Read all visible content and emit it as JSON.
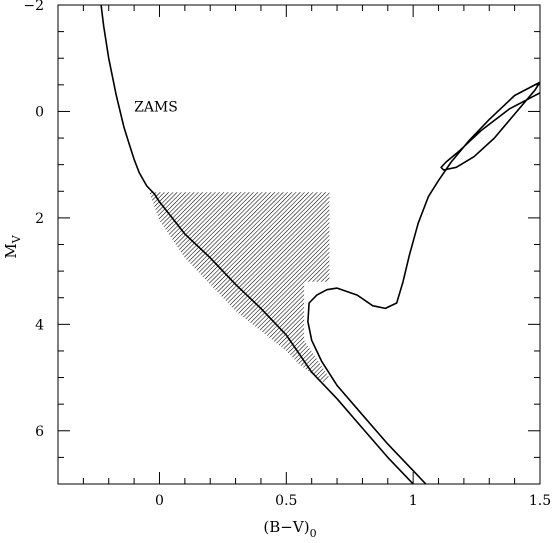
{
  "chart_data": {
    "type": "line",
    "xlabel": "(B−V)",
    "xlabel_sub": "0",
    "ylabel": "M",
    "ylabel_sub": "V",
    "xlim": [
      -0.4,
      1.5
    ],
    "ylim": [
      -2,
      7
    ],
    "y_inverted": true,
    "grid": false,
    "x_ticks": [
      {
        "value": 0,
        "label": "0"
      },
      {
        "value": 0.5,
        "label": "0.5"
      },
      {
        "value": 1,
        "label": "1"
      },
      {
        "value": 1.5,
        "label": "1.5"
      }
    ],
    "y_ticks": [
      {
        "value": -2,
        "label": "−2"
      },
      {
        "value": 0,
        "label": "0"
      },
      {
        "value": 2,
        "label": "2"
      },
      {
        "value": 4,
        "label": "4"
      },
      {
        "value": 6,
        "label": "6"
      }
    ],
    "x_minor_step": 0.1,
    "y_minor_step": 0.5,
    "annotations": [
      {
        "text": "ZAMS",
        "x": -0.1,
        "y": 0.0
      }
    ],
    "series": [
      {
        "id": "zams",
        "x": [
          -0.23,
          -0.22,
          -0.2,
          -0.17,
          -0.14,
          -0.12,
          -0.1,
          -0.08,
          -0.05,
          -0.02,
          0.0,
          0.05,
          0.1,
          0.2,
          0.3,
          0.4,
          0.5,
          0.55,
          0.6,
          0.7,
          0.8,
          0.9,
          1.0,
          1.05
        ],
        "y": [
          -2.0,
          -1.6,
          -1.0,
          -0.3,
          0.3,
          0.6,
          0.9,
          1.15,
          1.4,
          1.55,
          1.7,
          2.0,
          2.3,
          2.75,
          3.25,
          3.7,
          4.2,
          4.55,
          4.9,
          5.4,
          5.95,
          6.5,
          7.0,
          7.3
        ]
      },
      {
        "id": "isochrone",
        "x": [
          1.05,
          1.0,
          0.9,
          0.8,
          0.7,
          0.64,
          0.6,
          0.585,
          0.59,
          0.62,
          0.66,
          0.7,
          0.78,
          0.84,
          0.89,
          0.935,
          0.96,
          0.985,
          1.02,
          1.06,
          1.1,
          1.15,
          1.22,
          1.3,
          1.4,
          1.46,
          1.5,
          1.48,
          1.4,
          1.32,
          1.24,
          1.17,
          1.12,
          1.11,
          1.13,
          1.18,
          1.27,
          1.38,
          1.5
        ],
        "y": [
          7.0,
          6.75,
          6.25,
          5.7,
          5.15,
          4.7,
          4.3,
          3.95,
          3.6,
          3.45,
          3.35,
          3.32,
          3.45,
          3.65,
          3.7,
          3.6,
          3.2,
          2.7,
          2.1,
          1.6,
          1.3,
          0.95,
          0.55,
          0.15,
          -0.3,
          -0.45,
          -0.55,
          -0.4,
          0.05,
          0.5,
          0.85,
          1.05,
          1.1,
          1.05,
          0.95,
          0.75,
          0.35,
          -0.05,
          -0.35
        ]
      }
    ],
    "shaded_region": {
      "x": [
        -0.04,
        0.67,
        0.67,
        0.57,
        0.57,
        0.67,
        0.65,
        0.55,
        0.5,
        0.3,
        0.1,
        0.0,
        -0.04
      ],
      "y": [
        1.52,
        1.52,
        3.2,
        3.2,
        4.3,
        5.0,
        5.1,
        4.75,
        4.5,
        3.75,
        2.75,
        2.05,
        1.52
      ]
    }
  }
}
